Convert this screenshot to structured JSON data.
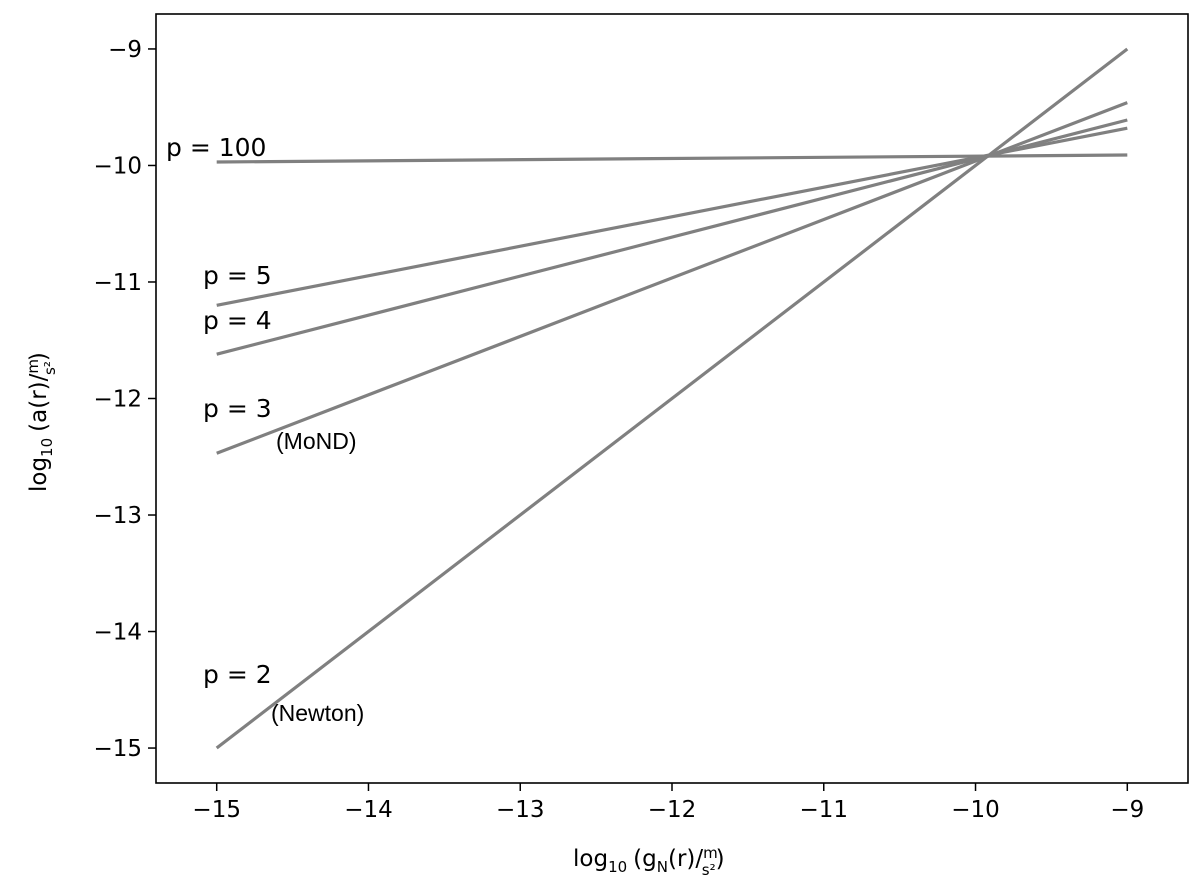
{
  "chart_data": {
    "type": "line",
    "title": "",
    "xlabel": {
      "prefix": "log",
      "sub": "10",
      "body": "(g",
      "body_sub": "N",
      "rest": "(r)/",
      "frac_num": "m",
      "frac_den": "s²",
      "close": ")"
    },
    "ylabel": {
      "prefix": "log",
      "sub": "10",
      "body": "(a(r)/",
      "frac_num": "m",
      "frac_den": "s²",
      "close": ")"
    },
    "xlim": [
      -15.4,
      -8.6
    ],
    "ylim": [
      -15.3,
      -8.7
    ],
    "xticks": [
      -15,
      -14,
      -13,
      -12,
      -11,
      -10,
      -9
    ],
    "yticks": [
      -15,
      -14,
      -13,
      -12,
      -11,
      -10,
      -9
    ],
    "xtick_labels": [
      "−15",
      "−14",
      "−13",
      "−12",
      "−11",
      "−10",
      "−9"
    ],
    "ytick_labels": [
      "−15",
      "−14",
      "−13",
      "−12",
      "−11",
      "−10",
      "−9"
    ],
    "grid": false,
    "line_color": "#808080",
    "series": [
      {
        "name": "p = 100",
        "x": [
          -15,
          -9
        ],
        "y": [
          -9.97,
          -9.91
        ]
      },
      {
        "name": "p = 5",
        "note": "",
        "x": [
          -15,
          -9
        ],
        "y": [
          -11.2,
          -9.68
        ]
      },
      {
        "name": "p = 4",
        "note": "",
        "x": [
          -15,
          -9
        ],
        "y": [
          -11.62,
          -9.61
        ]
      },
      {
        "name": "p = 3",
        "note": "(MoND)",
        "x": [
          -15,
          -9
        ],
        "y": [
          -12.47,
          -9.46
        ]
      },
      {
        "name": "p = 2",
        "note": "(Newton)",
        "x": [
          -15,
          -9
        ],
        "y": [
          -15.0,
          -9.0
        ]
      }
    ]
  }
}
